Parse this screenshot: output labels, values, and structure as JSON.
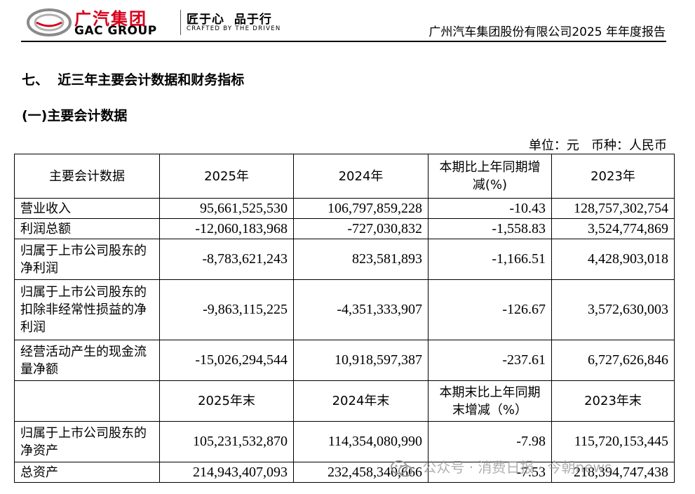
{
  "header": {
    "logo_cn": "广汽集团",
    "logo_en": "GAC GROUP",
    "slogan_cn": "匠于心  品于行",
    "slogan_en": "CRAFTED BY THE DRIVEN",
    "report_title": "广州汽车集团股份有限公司2025 年年度报告"
  },
  "section_title": "七、  近三年主要会计数据和财务指标",
  "sub_title": "(一)主要会计数据",
  "unit_line": "单位：元   币种：人民币",
  "table": {
    "header1": [
      "主要会计数据",
      "2025年",
      "2024年",
      "本期比上年同期增减(%)",
      "2023年"
    ],
    "rows1": [
      [
        "营业收入",
        "95,661,525,530",
        "106,797,859,228",
        "-10.43",
        "128,757,302,754"
      ],
      [
        "利润总额",
        "-12,060,183,968",
        "-727,030,832",
        "-1,558.83",
        "3,524,774,869"
      ],
      [
        "归属于上市公司股东的净利润",
        "-8,783,621,243",
        "823,581,893",
        "-1,166.51",
        "4,428,903,018"
      ],
      [
        "归属于上市公司股东的扣除非经常性损益的净利润",
        "-9,863,115,225",
        "-4,351,333,907",
        "-126.67",
        "3,572,630,003"
      ],
      [
        "经营活动产生的现金流量净额",
        "-15,026,294,544",
        "10,918,597,387",
        "-237.61",
        "6,727,626,846"
      ]
    ],
    "header2": [
      "",
      "2025年末",
      "2024年末",
      "本期末比上年同期末增减（%）",
      "2023年末"
    ],
    "rows2": [
      [
        "归属于上市公司股东的净资产",
        "105,231,532,870",
        "114,354,080,990",
        "-7.98",
        "115,720,153,445"
      ],
      [
        "总资产",
        "214,943,407,093",
        "232,458,340,666",
        "-7.53",
        "218,394,747,438"
      ]
    ]
  },
  "watermark": "公众号 · 消费日报 · 今朝news",
  "colors": {
    "brand_red": "#d6001c",
    "text": "#000000",
    "watermark": "#969696"
  }
}
